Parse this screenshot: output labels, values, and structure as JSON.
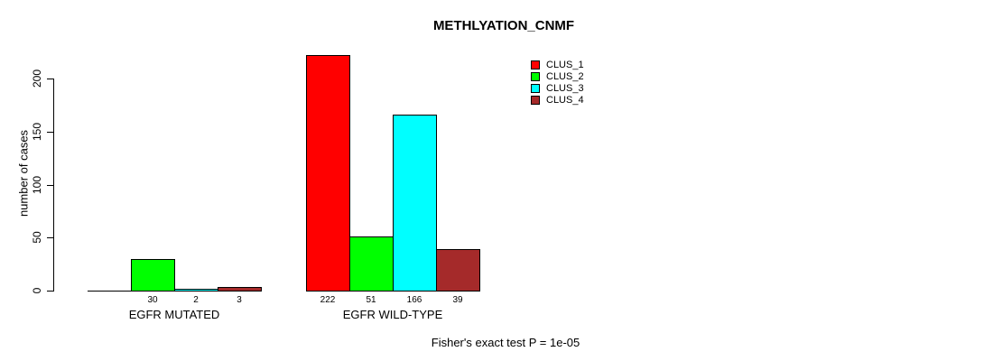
{
  "title": "METHLYATION_CNMF",
  "ylabel": "number of cases",
  "footnote": "Fisher's exact test P = 1e-05",
  "chart_data": {
    "type": "bar",
    "grouped": true,
    "title": "METHLYATION_CNMF",
    "xlabel": "",
    "ylabel": "number of cases",
    "categories": [
      "EGFR MUTATED",
      "EGFR WILD-TYPE"
    ],
    "series": [
      {
        "name": "CLUS_1",
        "color": "#FF0000",
        "values": [
          0,
          222
        ]
      },
      {
        "name": "CLUS_2",
        "color": "#00FF00",
        "values": [
          30,
          51
        ]
      },
      {
        "name": "CLUS_3",
        "color": "#00FFFF",
        "values": [
          2,
          166
        ]
      },
      {
        "name": "CLUS_4",
        "color": "#A52A2A",
        "values": [
          3,
          39
        ]
      }
    ],
    "yticks": [
      0,
      50,
      100,
      150,
      200
    ],
    "ylim": [
      0,
      222
    ],
    "bar_value_labels": true,
    "zero_bars_render_as_line": true,
    "zero_bars_unlabeled": true,
    "grid": false,
    "legend_position": "top-right",
    "annotation": "Fisher's exact test P = 1e-05"
  }
}
